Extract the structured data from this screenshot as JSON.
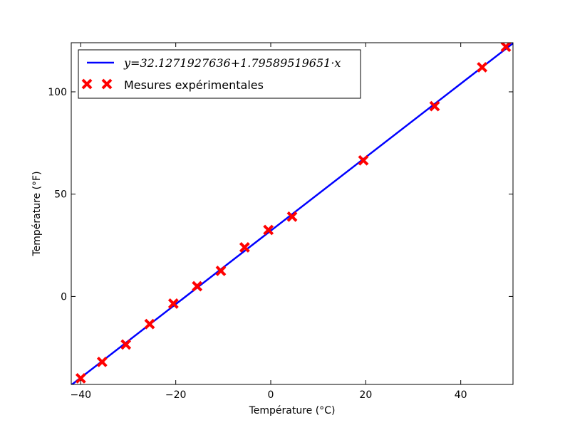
{
  "chart_data": {
    "type": "scatter",
    "xlabel": "Température (°C)",
    "ylabel": "Température (°F)",
    "xlim": [
      -42,
      51
    ],
    "ylim": [
      -43,
      124
    ],
    "x_ticks": [
      -40,
      -20,
      0,
      20,
      40
    ],
    "x_tick_labels": [
      "−40",
      "−20",
      "0",
      "20",
      "40"
    ],
    "y_ticks": [
      0,
      50,
      100
    ],
    "y_tick_labels": [
      "0",
      "50",
      "100"
    ],
    "grid": false,
    "legend_position": "upper-left",
    "colors": {
      "fit_line": "#0000ff",
      "measurements": "#ff0000"
    },
    "series": [
      {
        "name": "y=32.1271927636+1.79589519651·x",
        "kind": "line",
        "intercept": 32.1271927636,
        "slope": 1.79589519651
      },
      {
        "name": "Mesures expérimentales",
        "kind": "scatter",
        "marker": "x",
        "points": [
          [
            -40,
            -40
          ],
          [
            -35.5,
            -32
          ],
          [
            -30.5,
            -23.5
          ],
          [
            -25.5,
            -13.5
          ],
          [
            -20.5,
            -3.5
          ],
          [
            -15.5,
            5
          ],
          [
            -10.5,
            12.5
          ],
          [
            -5.5,
            24
          ],
          [
            -0.5,
            32.5
          ],
          [
            4.5,
            39
          ],
          [
            19.5,
            66.5
          ],
          [
            34.5,
            93
          ],
          [
            44.5,
            112
          ],
          [
            49.5,
            122
          ]
        ]
      }
    ]
  }
}
